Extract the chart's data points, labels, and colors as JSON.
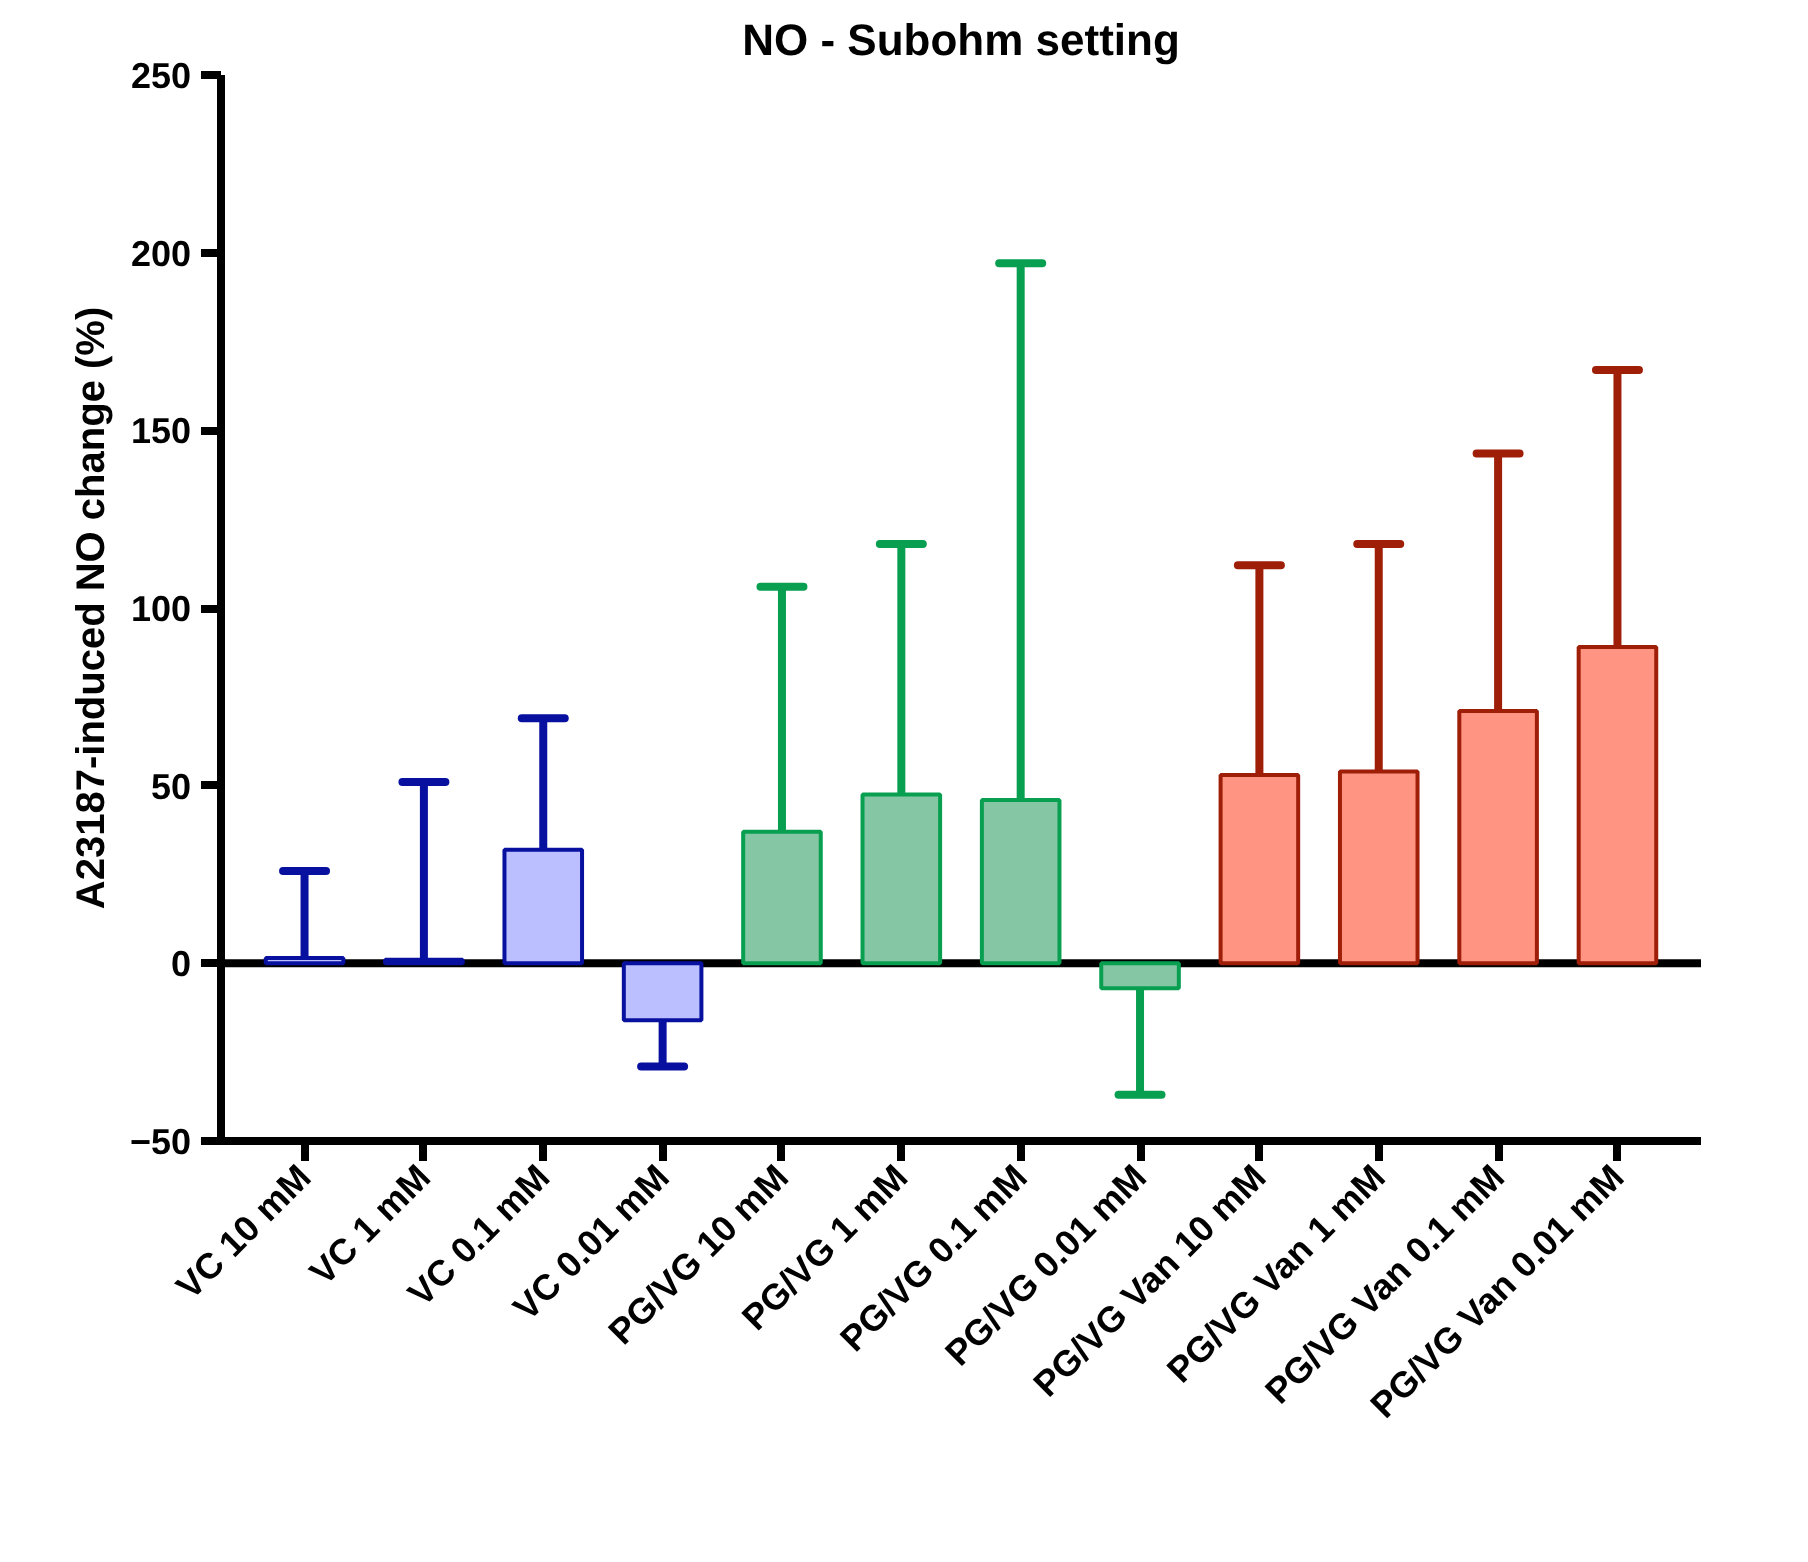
{
  "chart_data": {
    "type": "bar",
    "title": "NO - Subohm setting",
    "ylabel": "A23187-induced NO change (%)",
    "categories": [
      "VC 10 mM",
      "VC 1 mM",
      "VC 0.1 mM",
      "VC 0.01 mM",
      "PG/VG 10 mM",
      "PG/VG 1 mM",
      "PG/VG 0.1 mM",
      "PG/VG 0.01 mM",
      "PG/VG Van 10 mM",
      "PG/VG Van 1 mM",
      "PG/VG Van 0.1 mM",
      "PG/VG Van 0.01 mM"
    ],
    "values": [
      1.5,
      1,
      32,
      -16,
      37,
      47.5,
      46,
      -7,
      53,
      54,
      71,
      89
    ],
    "errors": [
      [
        1.5,
        26
      ],
      [
        1,
        51
      ],
      [
        32,
        69
      ],
      [
        -29,
        -16
      ],
      [
        37,
        106
      ],
      [
        47.5,
        118
      ],
      [
        46,
        197
      ],
      [
        -37,
        -7
      ],
      [
        53,
        112
      ],
      [
        54,
        118
      ],
      [
        71,
        143.5
      ],
      [
        89,
        167
      ]
    ],
    "colors": [
      "#bbbfff",
      "#bbbfff",
      "#bbbfff",
      "#bbbfff",
      "#85c7a5",
      "#85c7a5",
      "#85c7a5",
      "#85c7a5",
      "#ff9482",
      "#ff9482",
      "#ff9482",
      "#ff9482"
    ],
    "ylim": [
      -50,
      250
    ],
    "yticks": [
      -50,
      0,
      50,
      100,
      150,
      200,
      250
    ],
    "ref_lines": [
      {
        "axis": "y",
        "value": 0
      }
    ],
    "grid": false
  }
}
